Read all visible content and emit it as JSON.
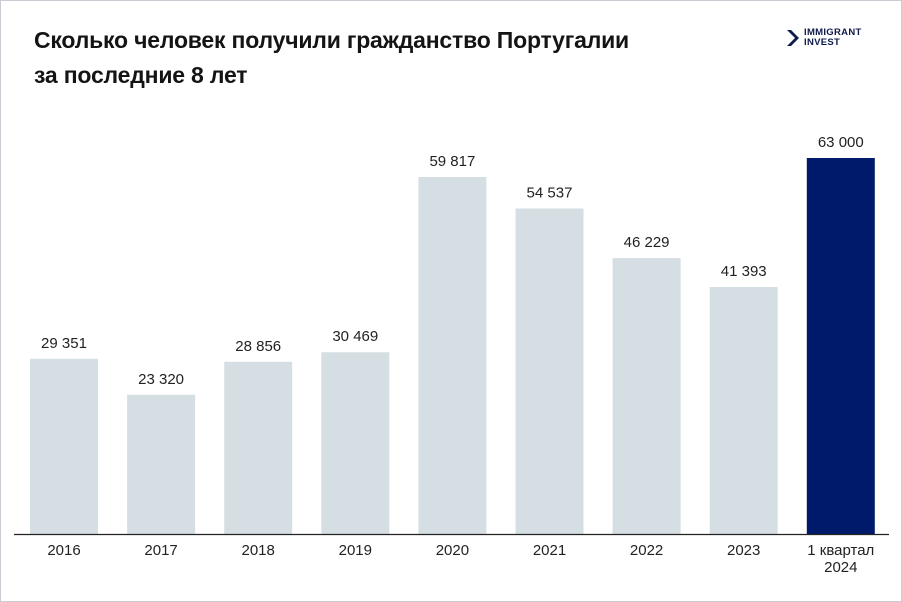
{
  "title_line1": "Сколько человек получили гражданство Португалии",
  "title_line2": "за последние 8 лет",
  "logo": {
    "line1": "IMMIGRANT",
    "line2": "INVEST",
    "icon": "chevron-arrow-icon",
    "color": "#0f1b4d"
  },
  "colors": {
    "bar": "#d5dfe3",
    "highlight": "#001a6b",
    "axis": "#222222"
  },
  "chart_data": {
    "type": "bar",
    "categories": [
      "2016",
      "2017",
      "2018",
      "2019",
      "2020",
      "2021",
      "2022",
      "2023",
      "1 квартал 2024"
    ],
    "category_lines": [
      [
        "2016"
      ],
      [
        "2017"
      ],
      [
        "2018"
      ],
      [
        "2019"
      ],
      [
        "2020"
      ],
      [
        "2021"
      ],
      [
        "2022"
      ],
      [
        "2023"
      ],
      [
        "1 квартал",
        "2024"
      ]
    ],
    "values": [
      29351,
      23320,
      28856,
      30469,
      59817,
      54537,
      46229,
      41393,
      63000
    ],
    "value_labels": [
      "29 351",
      "23 320",
      "28 856",
      "30 469",
      "59 817",
      "54 537",
      "46 229",
      "41 393",
      "63 000"
    ],
    "highlight_index": 8,
    "title": "Сколько человек получили гражданство Португалии за последние 8 лет",
    "xlabel": "",
    "ylabel": "",
    "ylim": [
      0,
      63000
    ],
    "grid": false,
    "legend": "none"
  }
}
